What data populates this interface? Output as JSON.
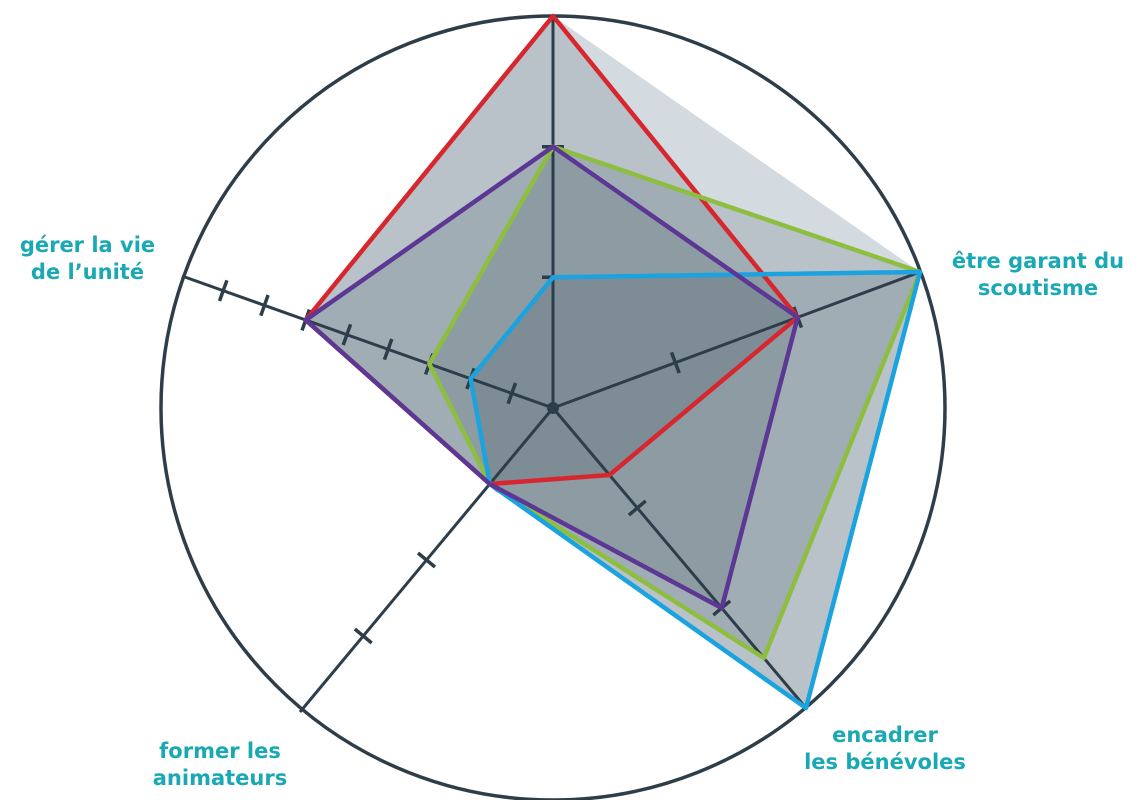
{
  "chart_data": {
    "type": "radar",
    "axes": [
      {
        "label": "",
        "max": 3,
        "ticks": 3
      },
      {
        "label": "être garant du\nscoutisme",
        "max": 3,
        "ticks": 3
      },
      {
        "label": "encadrer\nles bénévoles",
        "max": 3,
        "ticks": 3
      },
      {
        "label": "former les\nanimateurs",
        "max": 4,
        "ticks": 4
      },
      {
        "label": "gérer la vie\nde l’unité",
        "max": 9,
        "ticks": 9
      }
    ],
    "series": [
      {
        "values": [
          3,
          2,
          0.67,
          1,
          6
        ],
        "color": "#d8262f"
      },
      {
        "values": [
          2,
          3,
          2.5,
          1,
          3
        ],
        "color": "#8dbe3f"
      },
      {
        "values": [
          1,
          3,
          3,
          1,
          2
        ],
        "color": "#1aa3de"
      },
      {
        "values": [
          2,
          2,
          2,
          1,
          6
        ],
        "color": "#5c3794"
      }
    ],
    "envelope_color": "#d4dbe0",
    "axis_color": "#2d3e4a",
    "fill_color": "#2d4a52"
  }
}
